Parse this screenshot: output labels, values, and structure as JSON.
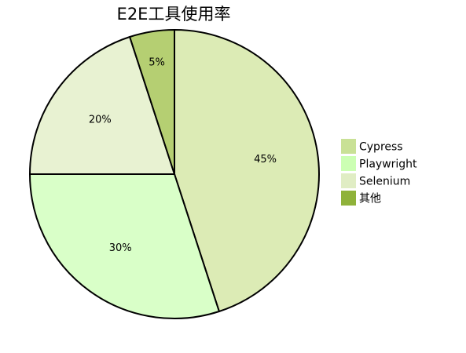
{
  "chart_data": {
    "type": "pie",
    "title": "E2E工具使用率",
    "labels": [
      "Cypress",
      "Playwright",
      "Selenium",
      "其他"
    ],
    "values": [
      45,
      30,
      20,
      5
    ],
    "value_labels": [
      "45%",
      "30%",
      "20%",
      "5%"
    ],
    "slice_colors": [
      "#dcebb5",
      "#d9ffc8",
      "#e8f2d2",
      "#b5cf72"
    ],
    "legend_colors": [
      "#c9e196",
      "#ccffb3",
      "#e0edc4",
      "#8fb23a"
    ],
    "edge_color": "#000000",
    "start_angle": "top",
    "direction": "clockwise",
    "legend_position": "right"
  }
}
